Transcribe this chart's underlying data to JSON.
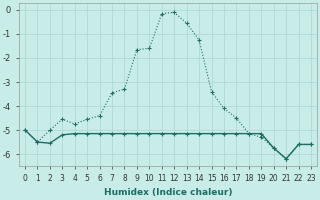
{
  "xlabel": "Humidex (Indice chaleur)",
  "background_color": "#c8ece8",
  "grid_color": "#b0d8d4",
  "line_color": "#1a6e62",
  "x_values": [
    0,
    1,
    2,
    3,
    4,
    5,
    6,
    7,
    8,
    9,
    10,
    11,
    12,
    13,
    14,
    15,
    16,
    17,
    18,
    19,
    20,
    21,
    22,
    23
  ],
  "y1_values": [
    -5.0,
    -5.5,
    -5.0,
    -4.55,
    -4.75,
    -4.55,
    -4.4,
    -3.45,
    -3.3,
    -1.65,
    -1.6,
    -0.15,
    -0.1,
    -0.55,
    -1.25,
    -3.4,
    -4.1,
    -4.5,
    -5.15,
    -5.3,
    -5.75,
    -6.2,
    -5.6,
    -5.6
  ],
  "y2_values": [
    -5.0,
    -5.5,
    -5.55,
    -5.2,
    -5.15,
    -5.15,
    -5.15,
    -5.15,
    -5.15,
    -5.15,
    -5.15,
    -5.15,
    -5.15,
    -5.15,
    -5.15,
    -5.15,
    -5.15,
    -5.15,
    -5.15,
    -5.15,
    -5.75,
    -6.2,
    -5.6,
    -5.6
  ],
  "ylim": [
    -6.5,
    0.3
  ],
  "xlim": [
    -0.5,
    23.5
  ],
  "yticks": [
    0,
    -1,
    -2,
    -3,
    -4,
    -5,
    -6
  ],
  "xticks": [
    0,
    1,
    2,
    3,
    4,
    5,
    6,
    7,
    8,
    9,
    10,
    11,
    12,
    13,
    14,
    15,
    16,
    17,
    18,
    19,
    20,
    21,
    22,
    23
  ],
  "xtick_labels": [
    "0",
    "1",
    "2",
    "3",
    "4",
    "5",
    "6",
    "7",
    "8",
    "9",
    "10",
    "11",
    "12",
    "13",
    "14",
    "15",
    "16",
    "17",
    "18",
    "19",
    "20",
    "21",
    "22",
    "23"
  ],
  "xlabel_fontsize": 6.5,
  "xlabel_color": "#1a6e62",
  "tick_fontsize": 5.5,
  "ytick_fontsize": 6.0
}
